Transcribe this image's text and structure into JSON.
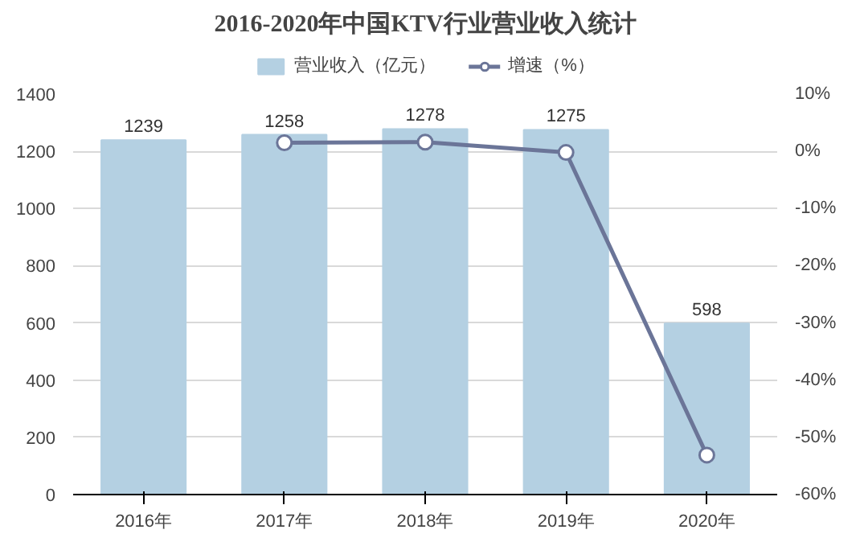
{
  "chart_data": {
    "type": "bar",
    "title": "2016-2020年中国KTV行业营业收入统计",
    "categories": [
      "2016年",
      "2017年",
      "2018年",
      "2019年",
      "2020年"
    ],
    "series": [
      {
        "name": "营业收入（亿元）",
        "color": "#b4d0e2",
        "values": [
          1239,
          1258,
          1278,
          1275,
          598
        ],
        "value_labels": [
          "1239",
          "1258",
          "1278",
          "1275",
          "598"
        ]
      },
      {
        "name": "增速（%）",
        "type": "line",
        "axis": "y2",
        "color": "#6b7598",
        "marker": "circle",
        "values": [
          null,
          1.5,
          1.6,
          -0.2,
          -53.1
        ]
      }
    ],
    "ylim": [
      0,
      1400
    ],
    "yticks": [
      0,
      200,
      400,
      600,
      800,
      1000,
      1200,
      1400
    ],
    "y2lim": [
      -60,
      10
    ],
    "y2ticks": [
      {
        "value": -60,
        "label": "-60%"
      },
      {
        "value": -50,
        "label": "-50%"
      },
      {
        "value": -40,
        "label": "-40%"
      },
      {
        "value": -30,
        "label": "-30%"
      },
      {
        "value": -20,
        "label": "-20%"
      },
      {
        "value": -10,
        "label": "-10%"
      },
      {
        "value": 0,
        "label": "0%"
      },
      {
        "value": 10,
        "label": "10%"
      }
    ],
    "grid": "y",
    "legend": "top"
  }
}
